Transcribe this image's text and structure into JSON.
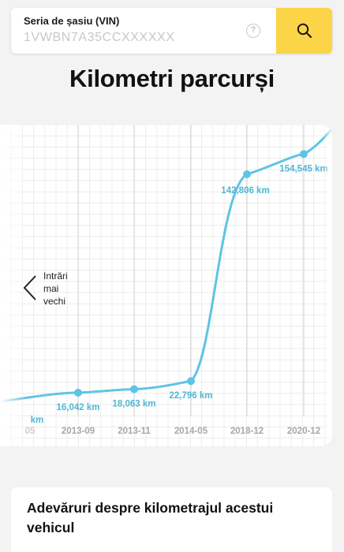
{
  "search": {
    "label": "Seria de șasiu (VIN)",
    "placeholder": "1VWBN7A35CCXXXXXX",
    "help_symbol": "?",
    "button_icon": "search-icon"
  },
  "page": {
    "title": "Kilometri parcurși",
    "section_title": "Adevăruri despre kilometrajul acestui vehicul"
  },
  "navigation": {
    "older_label": "Intrări\nmai\nvechi",
    "older_icon": "chevron-left-icon"
  },
  "colors": {
    "accent": "#fcd447",
    "line": "#5ec4e4",
    "label": "#4eb6d6"
  },
  "chart_data": {
    "type": "line",
    "categories": [
      "…05",
      "2013-09",
      "2013-11",
      "2014-05",
      "2018-12",
      "2020-12"
    ],
    "tick_labels": [
      "05",
      "2013-09",
      "2013-11",
      "2014-05",
      "2018-12",
      "2020-12"
    ],
    "values_km": [
      null,
      16042,
      18063,
      22796,
      142806,
      154545
    ],
    "point_labels": [
      "km",
      "16,042 km",
      "18,063 km",
      "22,796 km",
      "142,806 km",
      "154,545 km"
    ],
    "unit": "km",
    "grid": true,
    "smooth": true
  }
}
